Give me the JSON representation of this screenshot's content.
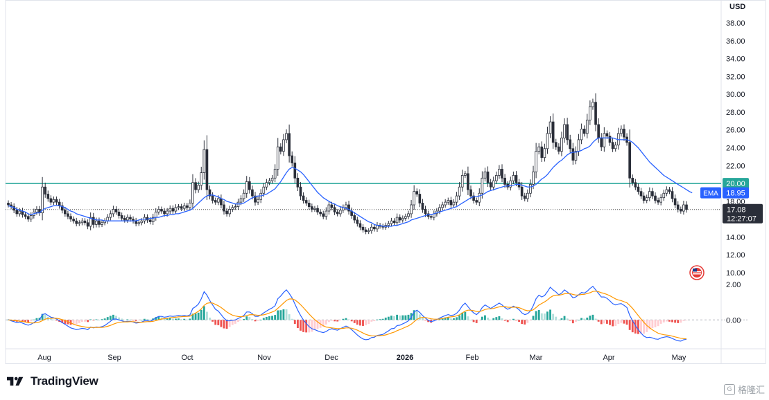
{
  "chart_data": {
    "type": "candlestick",
    "currency": "USD",
    "ylim": [
      10,
      38
    ],
    "y_ticks": [
      "38.00",
      "36.00",
      "34.00",
      "32.00",
      "30.00",
      "28.00",
      "26.00",
      "24.00",
      "22.00",
      "20.00",
      "18.00",
      "16.00",
      "14.00",
      "12.00",
      "10.00"
    ],
    "x_ticks": [
      "Aug",
      "Sep",
      "Oct",
      "Nov",
      "Dec",
      "2026",
      "Feb",
      "Mar",
      "Apr",
      "May"
    ],
    "horizontal_level": {
      "value": 20.0,
      "label": "20.00",
      "color": "#26a69a"
    },
    "last_price": {
      "value": 17.08,
      "label": "17.08",
      "time_label": "12:27:07"
    },
    "ema": {
      "name": "EMA",
      "last_label": "18.95",
      "color": "#2962ff"
    },
    "close": [
      17.6,
      17.4,
      17.0,
      16.6,
      16.9,
      16.5,
      16.3,
      16.0,
      16.4,
      16.8,
      17.1,
      16.7,
      19.6,
      18.8,
      18.3,
      17.9,
      18.2,
      17.9,
      17.5,
      17.0,
      16.6,
      16.3,
      16.0,
      15.8,
      15.5,
      15.6,
      15.8,
      15.6,
      15.2,
      16.2,
      15.4,
      15.8,
      15.4,
      15.6,
      15.8,
      16.2,
      16.6,
      17.1,
      16.8,
      16.4,
      16.1,
      15.9,
      16.2,
      16.0,
      15.8,
      15.5,
      15.6,
      15.8,
      16.2,
      15.9,
      15.7,
      16.2,
      16.8,
      17.1,
      16.9,
      16.6,
      16.9,
      17.2,
      16.9,
      17.3,
      17.4,
      17.2,
      17.5,
      17.3,
      17.8,
      20.1,
      19.3,
      19.8,
      21.2,
      23.8,
      19.3,
      18.6,
      18.1,
      17.9,
      18.3,
      17.6,
      16.9,
      16.6,
      17.1,
      17.3,
      17.4,
      17.9,
      18.3,
      18.9,
      20.2,
      19.3,
      18.6,
      17.9,
      18.2,
      18.9,
      19.6,
      20.1,
      20.3,
      20.6,
      21.6,
      24.1,
      23.6,
      24.9,
      25.6,
      23.1,
      22.3,
      20.6,
      19.6,
      18.6,
      18.1,
      17.8,
      17.4,
      17.1,
      17.2,
      16.8,
      16.6,
      16.3,
      16.9,
      17.6,
      17.3,
      16.8,
      16.6,
      17.0,
      17.3,
      17.6,
      16.9,
      16.4,
      15.9,
      15.5,
      15.1,
      14.8,
      14.6,
      14.7,
      15.1,
      14.9,
      15.3,
      15.2,
      15.1,
      15.3,
      15.5,
      15.8,
      15.6,
      16.2,
      15.9,
      16.1,
      16.3,
      16.6,
      17.6,
      19.1,
      18.8,
      17.8,
      17.1,
      16.6,
      16.3,
      16.2,
      16.6,
      16.9,
      17.3,
      17.6,
      17.9,
      18.1,
      17.6,
      17.9,
      18.6,
      19.6,
      20.9,
      21.1,
      19.3,
      18.6,
      18.1,
      17.9,
      18.9,
      20.6,
      21.3,
      20.1,
      19.6,
      20.3,
      20.9,
      21.6,
      20.6,
      19.9,
      19.6,
      20.3,
      20.9,
      20.1,
      19.6,
      18.6,
      18.3,
      18.9,
      19.9,
      21.3,
      23.6,
      24.1,
      22.9,
      23.9,
      25.6,
      26.9,
      24.6,
      24.1,
      23.6,
      25.1,
      26.6,
      24.9,
      23.9,
      22.6,
      23.6,
      24.9,
      26.1,
      25.6,
      27.1,
      28.6,
      29.1,
      26.6,
      25.1,
      24.1,
      25.6,
      25.3,
      24.6,
      23.9,
      24.3,
      25.6,
      26.1,
      25.2,
      24.6,
      20.6,
      20.1,
      19.6,
      19.1,
      18.6,
      18.1,
      18.4,
      19.1,
      18.6,
      18.1,
      17.9,
      18.4,
      18.9,
      19.3,
      19.1,
      18.3,
      17.6,
      17.1,
      16.9,
      17.6,
      17.08
    ],
    "ema_values": [
      17.5,
      17.4,
      17.3,
      17.1,
      17.0,
      16.9,
      16.8,
      16.6,
      16.5,
      16.6,
      16.7,
      16.7,
      17.0,
      17.2,
      17.3,
      17.4,
      17.5,
      17.5,
      17.5,
      17.4,
      17.3,
      17.1,
      16.9,
      16.8,
      16.6,
      16.5,
      16.4,
      16.3,
      16.2,
      16.1,
      16.0,
      15.9,
      15.9,
      15.9,
      15.8,
      15.8,
      15.8,
      15.8,
      15.8,
      15.8,
      15.8,
      15.8,
      15.8,
      15.8,
      15.8,
      15.8,
      15.9,
      16.0,
      16.0,
      16.0,
      16.1,
      16.1,
      16.2,
      16.2,
      16.3,
      16.4,
      16.4,
      16.5,
      16.5,
      16.6,
      16.6,
      16.7,
      16.8,
      16.9,
      17.0,
      17.2,
      17.5,
      17.8,
      18.1,
      18.4,
      18.6,
      18.7,
      18.7,
      18.6,
      18.5,
      18.3,
      18.2,
      18.0,
      17.9,
      17.8,
      17.7,
      17.7,
      17.7,
      17.8,
      18.0,
      18.2,
      18.4,
      18.5,
      18.6,
      18.6,
      18.7,
      18.8,
      19.0,
      19.2,
      19.4,
      19.8,
      20.2,
      20.7,
      21.2,
      21.6,
      21.8,
      21.7,
      21.5,
      21.3,
      21.0,
      20.6,
      20.2,
      19.8,
      19.4,
      19.0,
      18.7,
      18.4,
      18.2,
      18.0,
      17.8,
      17.7,
      17.5,
      17.4,
      17.3,
      17.2,
      17.1,
      16.9,
      16.7,
      16.5,
      16.3,
      16.1,
      15.9,
      15.7,
      15.6,
      15.4,
      15.3,
      15.3,
      15.2,
      15.2,
      15.2,
      15.2,
      15.3,
      15.3,
      15.4,
      15.5,
      15.6,
      15.7,
      15.9,
      16.0,
      16.1,
      16.2,
      16.3,
      16.4,
      16.5,
      16.5,
      16.6,
      16.7,
      16.8,
      16.9,
      17.0,
      17.1,
      17.2,
      17.3,
      17.4,
      17.6,
      17.8,
      18.0,
      18.2,
      18.4,
      18.5,
      18.5,
      18.6,
      18.7,
      18.9,
      19.1,
      19.2,
      19.3,
      19.4,
      19.5,
      19.6,
      19.7,
      19.7,
      19.8,
      19.8,
      19.9,
      19.9,
      19.8,
      19.7,
      19.6,
      19.6,
      19.7,
      19.9,
      20.2,
      20.5,
      20.7,
      21.0,
      21.4,
      21.8,
      22.1,
      22.4,
      22.6,
      22.9,
      23.2,
      23.4,
      23.5,
      23.5,
      23.6,
      23.7,
      23.9,
      24.0,
      24.2,
      24.6,
      24.9,
      25.1,
      25.1,
      25.1,
      25.1,
      25.1,
      25.1,
      25.0,
      24.9,
      24.9,
      24.9,
      24.9,
      24.8,
      24.6,
      24.3,
      24.0,
      23.6,
      23.2,
      22.8,
      22.4,
      22.1,
      21.8,
      21.5,
      21.2,
      20.9,
      20.7,
      20.5,
      20.3,
      20.1,
      19.9,
      19.7,
      19.5,
      19.3,
      19.1,
      18.95
    ],
    "macd_indicator": {
      "zero_label": "0.00",
      "ticks": [
        "2.00",
        "0.00"
      ],
      "ylim": [
        -1.4,
        2.4
      ],
      "macd": [
        0.02,
        -0.05,
        -0.1,
        -0.15,
        -0.12,
        -0.18,
        -0.25,
        -0.3,
        -0.25,
        -0.15,
        -0.05,
        0.0,
        0.3,
        0.35,
        0.25,
        0.15,
        0.12,
        0.05,
        -0.05,
        -0.15,
        -0.25,
        -0.35,
        -0.45,
        -0.5,
        -0.55,
        -0.52,
        -0.48,
        -0.5,
        -0.55,
        -0.4,
        -0.45,
        -0.4,
        -0.42,
        -0.38,
        -0.32,
        -0.2,
        -0.08,
        0.05,
        0.05,
        0.0,
        -0.05,
        -0.1,
        -0.08,
        -0.08,
        -0.12,
        -0.18,
        -0.16,
        -0.12,
        -0.05,
        -0.05,
        -0.08,
        0.0,
        0.12,
        0.2,
        0.2,
        0.15,
        0.18,
        0.22,
        0.2,
        0.22,
        0.25,
        0.22,
        0.25,
        0.22,
        0.28,
        0.65,
        0.75,
        0.9,
        1.2,
        1.6,
        1.4,
        1.1,
        0.85,
        0.6,
        0.5,
        0.3,
        0.1,
        -0.05,
        -0.05,
        -0.02,
        0.0,
        0.08,
        0.15,
        0.25,
        0.45,
        0.45,
        0.35,
        0.2,
        0.2,
        0.28,
        0.4,
        0.5,
        0.6,
        0.68,
        0.8,
        1.2,
        1.35,
        1.55,
        1.7,
        1.5,
        1.25,
        0.9,
        0.55,
        0.25,
        0.0,
        -0.2,
        -0.38,
        -0.5,
        -0.55,
        -0.62,
        -0.68,
        -0.72,
        -0.66,
        -0.55,
        -0.5,
        -0.55,
        -0.58,
        -0.5,
        -0.42,
        -0.35,
        -0.42,
        -0.55,
        -0.7,
        -0.85,
        -0.98,
        -1.08,
        -1.12,
        -1.1,
        -1.0,
        -0.98,
        -0.88,
        -0.85,
        -0.82,
        -0.72,
        -0.62,
        -0.5,
        -0.48,
        -0.32,
        -0.3,
        -0.22,
        -0.15,
        -0.05,
        0.15,
        0.45,
        0.55,
        0.42,
        0.25,
        0.1,
        -0.02,
        -0.1,
        -0.05,
        0.02,
        0.1,
        0.18,
        0.25,
        0.3,
        0.25,
        0.28,
        0.38,
        0.55,
        0.8,
        0.95,
        0.75,
        0.55,
        0.4,
        0.3,
        0.45,
        0.7,
        0.85,
        0.75,
        0.65,
        0.75,
        0.85,
        0.95,
        0.85,
        0.7,
        0.6,
        0.68,
        0.78,
        0.7,
        0.58,
        0.4,
        0.3,
        0.35,
        0.5,
        0.8,
        1.2,
        1.4,
        1.3,
        1.38,
        1.6,
        1.85,
        1.7,
        1.58,
        1.42,
        1.52,
        1.7,
        1.58,
        1.45,
        1.25,
        1.3,
        1.42,
        1.55,
        1.52,
        1.62,
        1.78,
        1.9,
        1.7,
        1.5,
        1.3,
        1.3,
        1.22,
        1.08,
        0.92,
        0.85,
        0.9,
        0.92,
        0.82,
        0.7,
        0.25,
        -0.05,
        -0.32,
        -0.55,
        -0.75,
        -0.92,
        -1.0,
        -0.98,
        -1.02,
        -1.08,
        -1.1,
        -1.02,
        -0.98,
        -0.95,
        -0.98,
        -1.05,
        -1.12,
        -1.18,
        -1.2,
        -1.12,
        -1.1
      ],
      "signal": [
        0.0,
        -0.01,
        -0.03,
        -0.05,
        -0.07,
        -0.09,
        -0.12,
        -0.15,
        -0.17,
        -0.17,
        -0.15,
        -0.12,
        -0.04,
        0.04,
        0.08,
        0.09,
        0.1,
        0.09,
        0.06,
        0.02,
        -0.03,
        -0.1,
        -0.17,
        -0.24,
        -0.3,
        -0.34,
        -0.37,
        -0.4,
        -0.43,
        -0.43,
        -0.43,
        -0.43,
        -0.43,
        -0.42,
        -0.4,
        -0.36,
        -0.31,
        -0.24,
        -0.18,
        -0.14,
        -0.12,
        -0.11,
        -0.11,
        -0.1,
        -0.1,
        -0.12,
        -0.13,
        -0.13,
        -0.11,
        -0.1,
        -0.1,
        -0.08,
        -0.04,
        0.01,
        0.05,
        0.07,
        0.09,
        0.12,
        0.13,
        0.15,
        0.17,
        0.18,
        0.19,
        0.2,
        0.21,
        0.3,
        0.39,
        0.49,
        0.63,
        0.82,
        0.94,
        0.97,
        0.95,
        0.88,
        0.8,
        0.7,
        0.58,
        0.45,
        0.35,
        0.27,
        0.22,
        0.19,
        0.18,
        0.2,
        0.25,
        0.29,
        0.3,
        0.28,
        0.26,
        0.27,
        0.29,
        0.33,
        0.39,
        0.45,
        0.52,
        0.66,
        0.8,
        0.95,
        1.1,
        1.18,
        1.19,
        1.13,
        1.01,
        0.86,
        0.69,
        0.51,
        0.33,
        0.17,
        0.02,
        -0.11,
        -0.23,
        -0.33,
        -0.4,
        -0.43,
        -0.45,
        -0.47,
        -0.49,
        -0.49,
        -0.48,
        -0.45,
        -0.45,
        -0.47,
        -0.52,
        -0.58,
        -0.66,
        -0.74,
        -0.82,
        -0.87,
        -0.9,
        -0.91,
        -0.9,
        -0.89,
        -0.88,
        -0.85,
        -0.8,
        -0.74,
        -0.69,
        -0.61,
        -0.55,
        -0.48,
        -0.41,
        -0.34,
        -0.24,
        -0.1,
        0.03,
        0.11,
        0.14,
        0.13,
        0.1,
        0.06,
        0.04,
        0.04,
        0.05,
        0.08,
        0.11,
        0.15,
        0.17,
        0.19,
        0.23,
        0.29,
        0.39,
        0.5,
        0.55,
        0.55,
        0.52,
        0.48,
        0.47,
        0.52,
        0.59,
        0.62,
        0.63,
        0.65,
        0.69,
        0.74,
        0.76,
        0.75,
        0.72,
        0.71,
        0.72,
        0.72,
        0.69,
        0.63,
        0.56,
        0.52,
        0.52,
        0.57,
        0.7,
        0.84,
        0.93,
        1.02,
        1.13,
        1.27,
        1.36,
        1.4,
        1.4,
        1.43,
        1.48,
        1.5,
        1.49,
        1.44,
        1.41,
        1.41,
        1.44,
        1.45,
        1.49,
        1.54,
        1.61,
        1.63,
        1.6,
        1.54,
        1.5,
        1.44,
        1.37,
        1.28,
        1.19,
        1.13,
        1.09,
        1.03,
        0.97,
        0.82,
        0.65,
        0.45,
        0.25,
        0.05,
        -0.14,
        -0.31,
        -0.44,
        -0.56,
        -0.66,
        -0.75,
        -0.8,
        -0.84,
        -0.86,
        -0.88,
        -0.92,
        -0.96,
        -1.0,
        -1.04,
        -1.06,
        -1.07
      ]
    }
  },
  "branding": {
    "name": "TradingView"
  },
  "watermark": {
    "text": "格隆汇"
  }
}
